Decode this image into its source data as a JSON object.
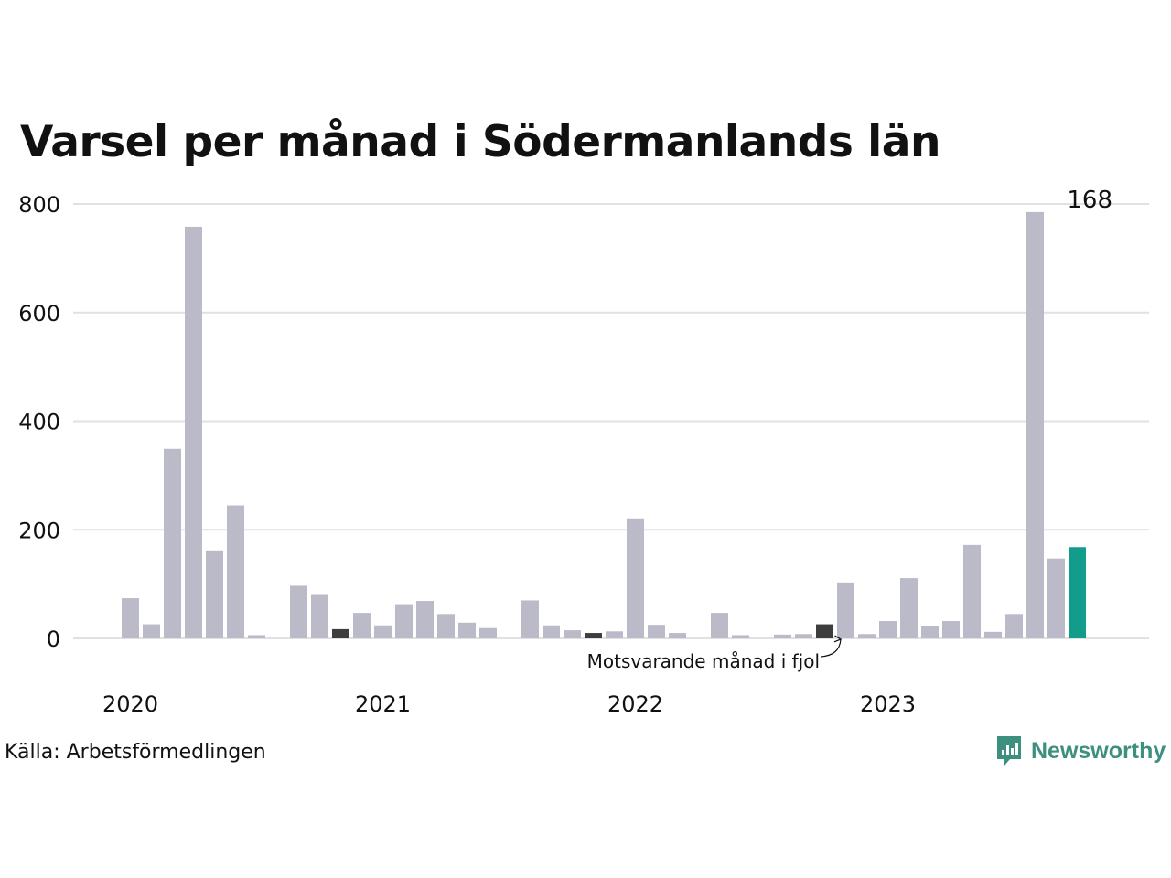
{
  "title": "Varsel per månad i Södermanlands län",
  "source": "Källa: Arbetsförmedlingen",
  "brand": {
    "name": "Newsworthy",
    "icon": "newsworthy-logo-icon"
  },
  "colors": {
    "bar": "#bbbac8",
    "highlight": "#3d3d3d",
    "current": "#129c8b",
    "grid": "#e1e1e4",
    "text": "#111111",
    "brand": "#3d8f80"
  },
  "chart_data": {
    "type": "bar",
    "title": "Varsel per månad i Södermanlands län",
    "xlabel": "",
    "ylabel": "",
    "ylim": [
      0,
      800
    ],
    "yticks": [
      0,
      200,
      400,
      600,
      800
    ],
    "grid": true,
    "year_labels": [
      "2020",
      "2021",
      "2022",
      "2023"
    ],
    "months": [
      "2020-01",
      "2020-02",
      "2020-03",
      "2020-04",
      "2020-05",
      "2020-06",
      "2020-07",
      "2020-08",
      "2020-09",
      "2020-10",
      "2020-11",
      "2020-12",
      "2021-01",
      "2021-02",
      "2021-03",
      "2021-04",
      "2021-05",
      "2021-06",
      "2021-07",
      "2021-08",
      "2021-09",
      "2021-10",
      "2021-11",
      "2021-12",
      "2022-01",
      "2022-02",
      "2022-03",
      "2022-04",
      "2022-05",
      "2022-06",
      "2022-07",
      "2022-08",
      "2022-09",
      "2022-10",
      "2022-11",
      "2022-12",
      "2023-01",
      "2023-02",
      "2023-03",
      "2023-04",
      "2023-05",
      "2023-06",
      "2023-07",
      "2023-08",
      "2023-09",
      "2023-10",
      "2023-11",
      "2023-12"
    ],
    "values": [
      0,
      0,
      74,
      26,
      349,
      758,
      162,
      245,
      6,
      0,
      97,
      80,
      17,
      47,
      24,
      63,
      69,
      45,
      29,
      19,
      0,
      70,
      24,
      15,
      10,
      13,
      221,
      25,
      10,
      0,
      47,
      6,
      0,
      7,
      8,
      26,
      103,
      8,
      32,
      111,
      22,
      32,
      172,
      12,
      45,
      785,
      147,
      168
    ],
    "highlight_month": "2022-12",
    "comparison_months": [
      "2021-01",
      "2022-01",
      "2022-12"
    ],
    "current_month": "2023-12",
    "current_value_label": "168",
    "annotation": "Motsvarande månad i fjol"
  }
}
